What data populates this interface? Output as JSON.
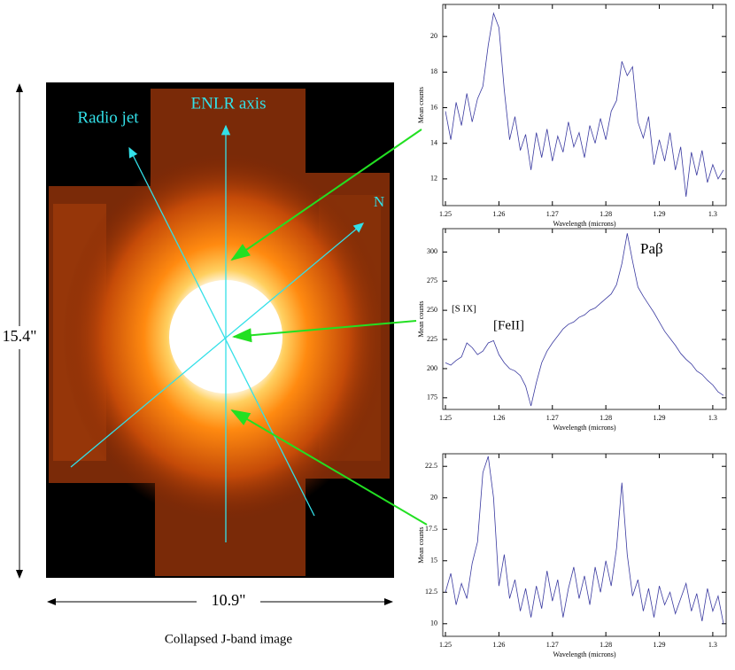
{
  "image": {
    "labels": [
      "Radio jet",
      "ENLR axis",
      "N"
    ],
    "height_label": "15.4\"",
    "width_label": "10.9\"",
    "caption": "Collapsed J-band image"
  },
  "chart_data": [
    {
      "type": "line",
      "xlabel": "Wavelength (microns)",
      "ylabel": "Mean counts",
      "color": "#3a3aa0",
      "x": [
        1.25,
        1.251,
        1.252,
        1.253,
        1.254,
        1.255,
        1.256,
        1.257,
        1.258,
        1.259,
        1.26,
        1.261,
        1.262,
        1.263,
        1.264,
        1.265,
        1.266,
        1.267,
        1.268,
        1.269,
        1.27,
        1.271,
        1.272,
        1.273,
        1.274,
        1.275,
        1.276,
        1.277,
        1.278,
        1.279,
        1.28,
        1.281,
        1.282,
        1.283,
        1.284,
        1.285,
        1.286,
        1.287,
        1.288,
        1.289,
        1.29,
        1.291,
        1.292,
        1.293,
        1.294,
        1.295,
        1.296,
        1.297,
        1.298,
        1.299,
        1.3,
        1.301,
        1.302
      ],
      "values": [
        15.8,
        14.2,
        16.3,
        15.0,
        16.8,
        15.2,
        16.5,
        17.2,
        19.5,
        21.3,
        20.5,
        17.0,
        14.2,
        15.5,
        13.6,
        14.5,
        12.5,
        14.6,
        13.2,
        14.8,
        13.0,
        14.4,
        13.5,
        15.2,
        13.8,
        14.6,
        13.2,
        15.0,
        14.0,
        15.4,
        14.2,
        15.8,
        16.4,
        18.6,
        17.8,
        18.3,
        15.2,
        14.3,
        15.5,
        12.8,
        14.2,
        13.0,
        14.6,
        12.5,
        13.8,
        11.0,
        13.5,
        12.2,
        13.6,
        11.8,
        12.8,
        12.0,
        12.5
      ],
      "xlim": [
        1.2495,
        1.3025
      ],
      "xticks": [
        1.25,
        1.26,
        1.27,
        1.28,
        1.29,
        1.3
      ],
      "ylim": [
        10.5,
        21.8
      ],
      "yticks": [
        12,
        14,
        16,
        18,
        20
      ]
    },
    {
      "type": "line",
      "xlabel": "Wavelength (microns)",
      "ylabel": "Mean counts",
      "color": "#3a3aa0",
      "annotations": [
        "[S IX]",
        "[FeII]",
        "Paβ"
      ],
      "x": [
        1.25,
        1.251,
        1.252,
        1.253,
        1.254,
        1.255,
        1.256,
        1.257,
        1.258,
        1.259,
        1.26,
        1.261,
        1.262,
        1.263,
        1.264,
        1.265,
        1.266,
        1.267,
        1.268,
        1.269,
        1.27,
        1.271,
        1.272,
        1.273,
        1.274,
        1.275,
        1.276,
        1.277,
        1.278,
        1.279,
        1.28,
        1.281,
        1.282,
        1.283,
        1.284,
        1.285,
        1.286,
        1.287,
        1.288,
        1.289,
        1.29,
        1.291,
        1.292,
        1.293,
        1.294,
        1.295,
        1.296,
        1.297,
        1.298,
        1.299,
        1.3,
        1.301,
        1.302
      ],
      "values": [
        205,
        203,
        207,
        210,
        222,
        218,
        212,
        215,
        222,
        224,
        212,
        205,
        200,
        198,
        194,
        185,
        168,
        188,
        205,
        215,
        222,
        228,
        234,
        238,
        240,
        244,
        246,
        250,
        252,
        256,
        260,
        264,
        272,
        290,
        316,
        292,
        270,
        262,
        255,
        248,
        240,
        232,
        226,
        220,
        213,
        208,
        204,
        198,
        195,
        190,
        186,
        180,
        177
      ],
      "xlim": [
        1.2495,
        1.3025
      ],
      "xticks": [
        1.25,
        1.26,
        1.27,
        1.28,
        1.29,
        1.3
      ],
      "ylim": [
        165,
        320
      ],
      "yticks": [
        175,
        200,
        225,
        250,
        275,
        300
      ]
    },
    {
      "type": "line",
      "xlabel": "Wavelength (microns)",
      "ylabel": "Mean counts",
      "color": "#3a3aa0",
      "x": [
        1.25,
        1.251,
        1.252,
        1.253,
        1.254,
        1.255,
        1.256,
        1.257,
        1.258,
        1.259,
        1.26,
        1.261,
        1.262,
        1.263,
        1.264,
        1.265,
        1.266,
        1.267,
        1.268,
        1.269,
        1.27,
        1.271,
        1.272,
        1.273,
        1.274,
        1.275,
        1.276,
        1.277,
        1.278,
        1.279,
        1.28,
        1.281,
        1.282,
        1.283,
        1.284,
        1.285,
        1.286,
        1.287,
        1.288,
        1.289,
        1.29,
        1.291,
        1.292,
        1.293,
        1.294,
        1.295,
        1.296,
        1.297,
        1.298,
        1.299,
        1.3,
        1.301,
        1.302
      ],
      "values": [
        12.5,
        14,
        11.5,
        13.2,
        12.0,
        14.8,
        16.5,
        22.0,
        23.3,
        20.0,
        13.0,
        15.5,
        12.0,
        13.5,
        11.0,
        12.8,
        10.5,
        13.0,
        11.2,
        14.2,
        11.8,
        13.5,
        10.5,
        12.8,
        14.5,
        12.0,
        13.8,
        11.5,
        14.5,
        12.5,
        15.0,
        13.0,
        16.0,
        21.2,
        15.5,
        12.2,
        13.5,
        11.0,
        12.8,
        10.5,
        13.0,
        11.5,
        12.5,
        10.8,
        12.0,
        13.2,
        11.0,
        12.4,
        10.2,
        12.8,
        11.0,
        12.2,
        10.0
      ],
      "xlim": [
        1.2495,
        1.3025
      ],
      "xticks": [
        1.25,
        1.26,
        1.27,
        1.28,
        1.29,
        1.3
      ],
      "ylim": [
        9,
        23.5
      ],
      "yticks": [
        10,
        12.5,
        15,
        17.5,
        20,
        22.5
      ]
    }
  ]
}
